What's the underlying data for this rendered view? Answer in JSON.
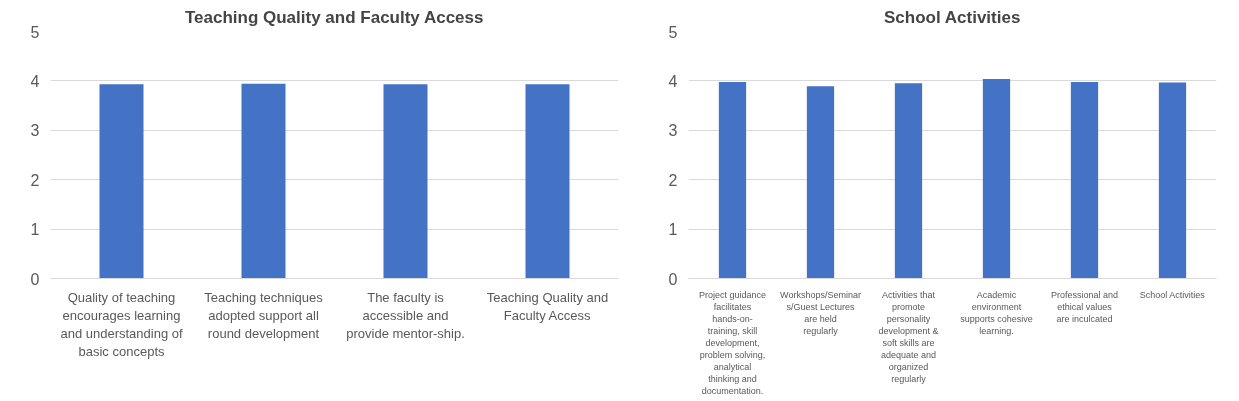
{
  "chart_data": [
    {
      "type": "bar",
      "title": "Teaching Quality and Faculty Access",
      "categories": [
        "Quality of teaching encourages learning and understanding of basic concepts",
        "Teaching techniques adopted support all round development",
        "The faculty is accessible and provide mentor-ship.",
        "Teaching Quality and Faculty Access"
      ],
      "values": [
        3.93,
        3.94,
        3.93,
        3.93
      ],
      "color": "#4472c4",
      "ylim": [
        0,
        5
      ],
      "yticks": [
        0,
        1,
        2,
        3,
        4,
        5
      ],
      "grid": "y"
    },
    {
      "type": "bar",
      "title": "School Activities",
      "categories": [
        "Project guidance facilitates hands-on-training, skill development, problem solving, analytical thinking and documentation.",
        "Workshops/Seminars/Guest Lectures are held regularly",
        "Activities that promote personality development & soft skills are adequate and organized regularly",
        "Academic environment supports cohesive learning.",
        "Professional and ethical values are inculcated",
        "School Activities"
      ],
      "values": [
        3.98,
        3.89,
        3.95,
        4.04,
        3.98,
        3.97
      ],
      "color": "#4472c4",
      "ylim": [
        0,
        5
      ],
      "yticks": [
        0,
        1,
        2,
        3,
        4,
        5
      ],
      "grid": "y"
    }
  ]
}
